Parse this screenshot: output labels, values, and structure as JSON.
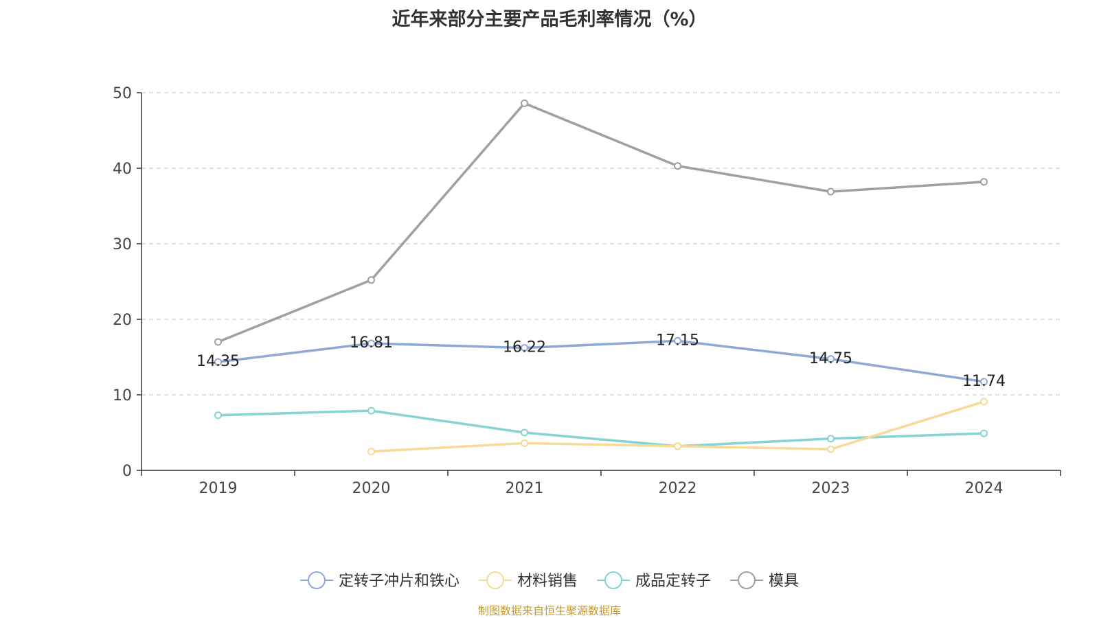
{
  "chart_data": {
    "type": "line",
    "title": "近年来部分主要产品毛利率情况（%）",
    "xlabel": "",
    "ylabel": "",
    "categories": [
      "2019",
      "2020",
      "2021",
      "2022",
      "2023",
      "2024"
    ],
    "ylim": [
      0,
      50
    ],
    "yticks": [
      0,
      10,
      20,
      30,
      40,
      50
    ],
    "grid": true,
    "legend_position": "bottom",
    "series": [
      {
        "name": "定转子冲片和铁心",
        "color": "#8fa9d6",
        "values": [
          14.35,
          16.81,
          16.22,
          17.15,
          14.75,
          11.74
        ],
        "show_labels": true
      },
      {
        "name": "材料销售",
        "color": "#f7d998",
        "values": [
          null,
          2.5,
          3.6,
          3.2,
          2.8,
          9.1
        ],
        "show_labels": false
      },
      {
        "name": "成品定转子",
        "color": "#86d3d4",
        "values": [
          7.3,
          7.9,
          5.0,
          3.2,
          4.2,
          4.9
        ],
        "show_labels": false
      },
      {
        "name": "模具",
        "color": "#a0a0a0",
        "values": [
          17.0,
          25.2,
          48.6,
          40.3,
          36.9,
          38.2
        ],
        "show_labels": false
      }
    ],
    "data_labels": [
      "14.35",
      "16.81",
      "16.22",
      "17.15",
      "14.75",
      "11.74"
    ]
  },
  "source": "制图数据来自恒生聚源数据库"
}
